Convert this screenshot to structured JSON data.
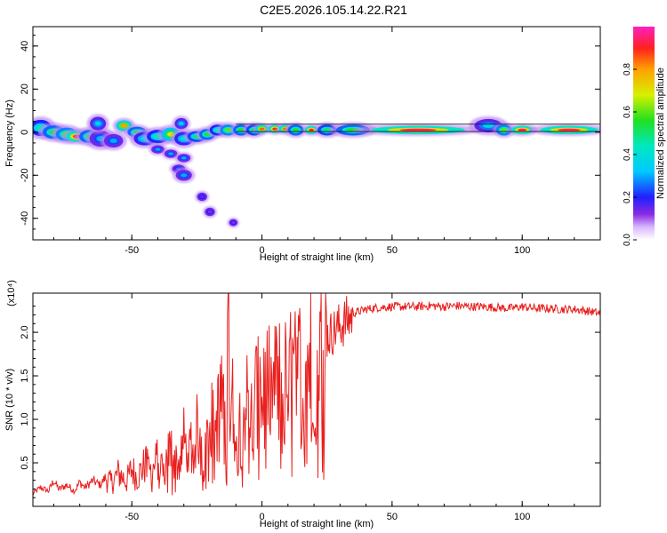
{
  "title": "C2E5.2026.105.14.22.R21",
  "chart_data": [
    {
      "type": "heatmap",
      "xlabel": "Height of straight line (km)",
      "ylabel": "Frequency (Hz)",
      "xlim": [
        -88,
        130
      ],
      "ylim": [
        -50,
        49
      ],
      "xticks": [
        -50,
        0,
        50,
        100
      ],
      "yticks": [
        -40,
        -20,
        0,
        20,
        40
      ],
      "colorbar": {
        "label": "Normalized spectral amplitude",
        "range": [
          0,
          1
        ],
        "ticks": [
          "0.0",
          "0.2",
          "0.4",
          "0.6",
          "0.8"
        ]
      },
      "blobs": [
        {
          "x": -85,
          "y": 2,
          "w": 6,
          "h": 5,
          "v": 0.45
        },
        {
          "x": -80,
          "y": 0,
          "w": 6,
          "h": 4,
          "v": 0.55
        },
        {
          "x": -75,
          "y": -1,
          "w": 6,
          "h": 4,
          "v": 0.6
        },
        {
          "x": -71,
          "y": -2,
          "w": 6,
          "h": 3,
          "v": 0.95
        },
        {
          "x": -66,
          "y": -2,
          "w": 6,
          "h": 4,
          "v": 0.55
        },
        {
          "x": -62,
          "y": -3,
          "w": 6,
          "h": 5,
          "v": 0.3
        },
        {
          "x": -57,
          "y": -4,
          "w": 5,
          "h": 4,
          "v": 0.3
        },
        {
          "x": -63,
          "y": 4,
          "w": 4,
          "h": 4,
          "v": 0.35
        },
        {
          "x": -53,
          "y": 3,
          "w": 4,
          "h": 3,
          "v": 0.8
        },
        {
          "x": -48,
          "y": 0,
          "w": 5,
          "h": 3,
          "v": 0.55
        },
        {
          "x": -45,
          "y": -3,
          "w": 6,
          "h": 4,
          "v": 0.4
        },
        {
          "x": -40,
          "y": -2,
          "w": 6,
          "h": 4,
          "v": 0.45
        },
        {
          "x": -35,
          "y": -1,
          "w": 5,
          "h": 4,
          "v": 0.7
        },
        {
          "x": -31,
          "y": 4,
          "w": 3,
          "h": 3,
          "v": 0.35
        },
        {
          "x": -30,
          "y": -3,
          "w": 5,
          "h": 4,
          "v": 0.4
        },
        {
          "x": -25,
          "y": -2,
          "w": 5,
          "h": 3,
          "v": 0.5
        },
        {
          "x": -21,
          "y": -1,
          "w": 4,
          "h": 3,
          "v": 0.55
        },
        {
          "x": -17,
          "y": 1,
          "w": 4,
          "h": 3,
          "v": 0.45
        },
        {
          "x": -13,
          "y": 1,
          "w": 4,
          "h": 3,
          "v": 0.6
        },
        {
          "x": -8,
          "y": 1,
          "w": 4,
          "h": 3,
          "v": 0.55
        },
        {
          "x": -3,
          "y": 1,
          "w": 4,
          "h": 3,
          "v": 0.5
        },
        {
          "x": 0,
          "y": 1.5,
          "w": 3,
          "h": 2,
          "v": 0.85
        },
        {
          "x": 5,
          "y": 1.5,
          "w": 3,
          "h": 2,
          "v": 0.9
        },
        {
          "x": 9,
          "y": 1.5,
          "w": 3,
          "h": 2,
          "v": 0.85
        },
        {
          "x": 13,
          "y": 1,
          "w": 4,
          "h": 3,
          "v": 0.55
        },
        {
          "x": 19,
          "y": 1,
          "w": 3,
          "h": 2,
          "v": 0.9
        },
        {
          "x": 25,
          "y": 1,
          "w": 5,
          "h": 3,
          "v": 0.5
        },
        {
          "x": 35,
          "y": 1,
          "w": 10,
          "h": 3,
          "v": 0.55
        },
        {
          "x": 60,
          "y": 1,
          "w": 30,
          "h": 2,
          "v": 0.95
        },
        {
          "x": 87,
          "y": 3,
          "w": 8,
          "h": 4,
          "v": 0.35
        },
        {
          "x": 93,
          "y": 1,
          "w": 4,
          "h": 3,
          "v": 0.6
        },
        {
          "x": 100,
          "y": 1,
          "w": 6,
          "h": 2,
          "v": 0.95
        },
        {
          "x": 118,
          "y": 1,
          "w": 18,
          "h": 2,
          "v": 0.95
        },
        {
          "x": -40,
          "y": -8,
          "w": 3,
          "h": 2,
          "v": 0.3
        },
        {
          "x": -35,
          "y": -10,
          "w": 3,
          "h": 2,
          "v": 0.3
        },
        {
          "x": -30,
          "y": -12,
          "w": 3,
          "h": 2,
          "v": 0.3
        },
        {
          "x": -32,
          "y": -17,
          "w": 3,
          "h": 2,
          "v": 0.25
        },
        {
          "x": -30,
          "y": -20,
          "w": 4,
          "h": 3,
          "v": 0.3
        },
        {
          "x": -23,
          "y": -30,
          "w": 2,
          "h": 2,
          "v": 0.15
        },
        {
          "x": -20,
          "y": -37,
          "w": 2,
          "h": 2,
          "v": 0.12
        },
        {
          "x": -11,
          "y": -42,
          "w": 1.5,
          "h": 1.5,
          "v": 0.12
        }
      ],
      "lines": [
        {
          "x0": -10,
          "x1": 130,
          "y": 0.3
        },
        {
          "x0": -10,
          "x1": 130,
          "y": 3.7
        }
      ]
    },
    {
      "type": "line",
      "xlabel": "Height of straight line (km)",
      "ylabel": "SNR (10 * v/v)",
      "y_multiplier": "(x10⁴)",
      "xlim": [
        -88,
        130
      ],
      "ylim": [
        0,
        2.45
      ],
      "xticks": [
        -50,
        0,
        50,
        100
      ],
      "yticks": [
        "0.5",
        "1.0",
        "1.5",
        "2.0"
      ],
      "color": "#e8201e",
      "series": [
        {
          "name": "SNR",
          "x": [
            -88,
            -85,
            -82,
            -80,
            -78,
            -75,
            -72,
            -70,
            -68,
            -65,
            -62,
            -60,
            -58,
            -55,
            -52,
            -50,
            -48,
            -45,
            -42,
            -40,
            -38,
            -35,
            -32,
            -30,
            -28,
            -25,
            -22,
            -20,
            -18,
            -16,
            -14,
            -13,
            -12,
            -11,
            -10,
            -9,
            -8,
            -6,
            -4,
            -2,
            0,
            2,
            4,
            6,
            8,
            10,
            12,
            14,
            16,
            18,
            20,
            22,
            24,
            26,
            28,
            30,
            32,
            35,
            40,
            45,
            50,
            55,
            60,
            65,
            70,
            75,
            80,
            85,
            90,
            95,
            100,
            105,
            110,
            115,
            120,
            125,
            130
          ],
          "y": [
            0.15,
            0.22,
            0.18,
            0.3,
            0.2,
            0.25,
            0.18,
            0.28,
            0.22,
            0.3,
            0.25,
            0.35,
            0.28,
            0.4,
            0.3,
            0.45,
            0.35,
            0.5,
            0.4,
            0.6,
            0.45,
            0.7,
            0.5,
            0.8,
            0.6,
            0.9,
            0.7,
            1.1,
            0.9,
            1.3,
            1.0,
            2.1,
            0.8,
            1.6,
            0.5,
            1.2,
            0.9,
            1.3,
            1.1,
            1.4,
            1.2,
            1.5,
            1.35,
            1.6,
            1.45,
            1.6,
            1.55,
            1.7,
            1.7,
            1.8,
            1.8,
            1.9,
            1.95,
            2.0,
            2.05,
            2.1,
            2.15,
            2.22,
            2.27,
            2.29,
            2.3,
            2.3,
            2.3,
            2.31,
            2.3,
            2.31,
            2.3,
            2.3,
            2.29,
            2.28,
            2.3,
            2.28,
            2.28,
            2.27,
            2.27,
            2.25,
            2.22
          ]
        }
      ]
    }
  ]
}
